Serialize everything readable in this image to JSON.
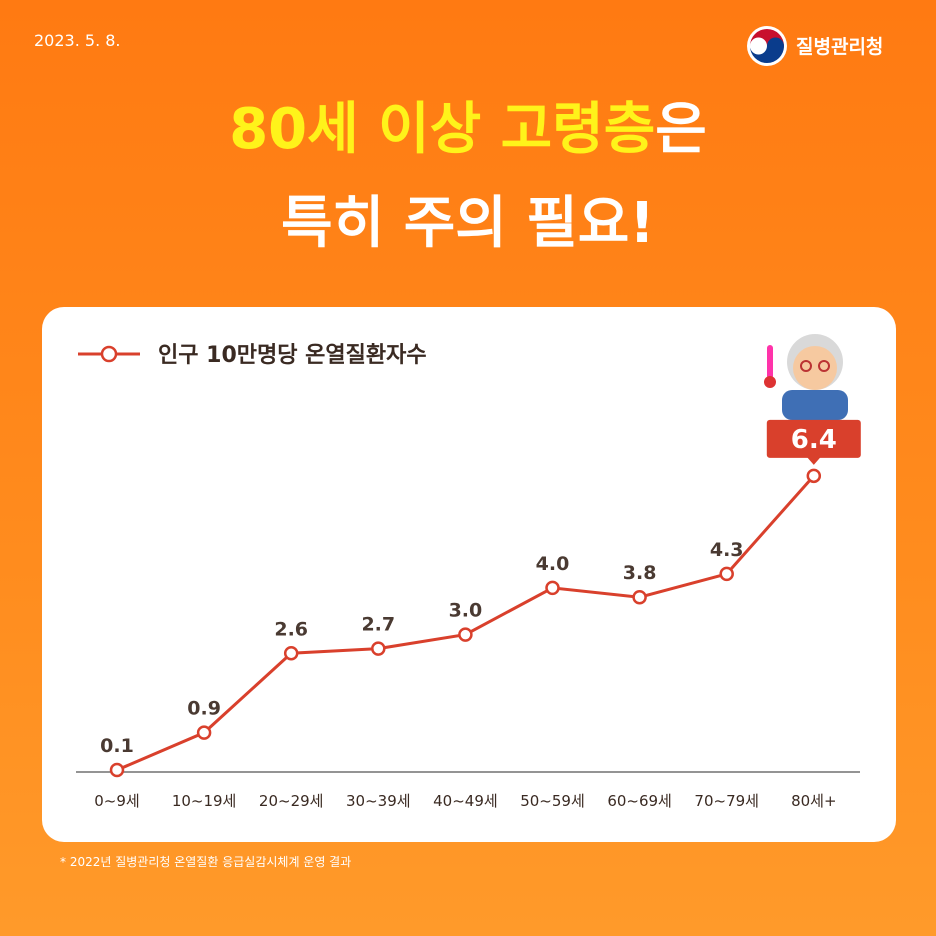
{
  "header": {
    "date": "2023. 5. 8.",
    "agency": "질병관리청",
    "title_highlight": "80세 이상 고령층",
    "title_rest": "은",
    "title_line2": "특히 주의 필요!"
  },
  "chart_data": {
    "type": "line",
    "categories": [
      "0~9세",
      "10~19세",
      "20~29세",
      "30~39세",
      "40~49세",
      "50~59세",
      "60~69세",
      "70~79세",
      "80세+"
    ],
    "series": [
      {
        "name": "인구 10만명당 온열질환자수",
        "color": "#d9402c",
        "values": [
          0.1,
          0.9,
          2.6,
          2.7,
          3.0,
          4.0,
          3.8,
          4.3,
          6.4
        ],
        "value_labels": [
          "0.1",
          "0.9",
          "2.6",
          "2.7",
          "3.0",
          "4.0",
          "3.8",
          "4.3",
          "6.4"
        ]
      }
    ]
  },
  "footnote": "* 2022년 질병관리청 온열질환 응급실감시체계 운영 결과"
}
